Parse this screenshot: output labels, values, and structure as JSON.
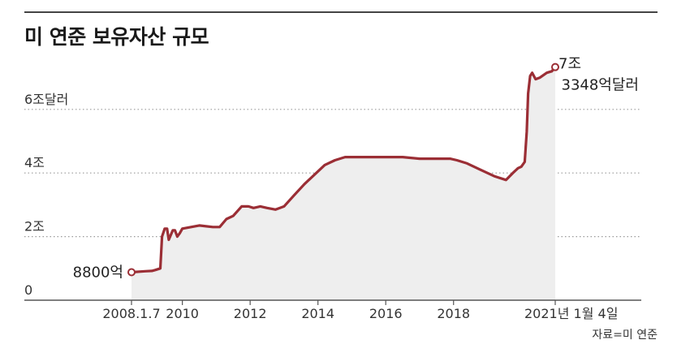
{
  "header": {
    "title": "미 연준 보유자산 규모",
    "source": "자료=미 연준"
  },
  "colors": {
    "line": "#9b2e35",
    "area": "#eeeeee",
    "grid": "#9a9a9a",
    "axis": "#555555"
  },
  "chart_data": {
    "type": "area",
    "title": "미 연준 보유자산 규모",
    "xlabel": "",
    "ylabel": "",
    "ylim": [
      0,
      7.5
    ],
    "xlim": [
      2008.5,
      2021.0
    ],
    "y_ticks": [
      {
        "value": 0,
        "label": "0"
      },
      {
        "value": 2,
        "label": "2조"
      },
      {
        "value": 4,
        "label": "4조"
      },
      {
        "value": 6,
        "label": "6조달러"
      }
    ],
    "x_ticks": [
      {
        "value": 2008.5,
        "label": "2008.1.7"
      },
      {
        "value": 2010,
        "label": "2010"
      },
      {
        "value": 2012,
        "label": "2012"
      },
      {
        "value": 2014,
        "label": "2014"
      },
      {
        "value": 2016,
        "label": "2016"
      },
      {
        "value": 2018,
        "label": "2018"
      },
      {
        "value": 2021.0,
        "label": "2021년 1월 4일"
      }
    ],
    "grid": "horizontal dotted",
    "series": [
      {
        "x": [
          2008.5,
          2008.9,
          2009.1,
          2009.2,
          2009.35,
          2009.4,
          2009.48,
          2009.55,
          2009.6,
          2009.66,
          2009.72,
          2009.78,
          2009.85,
          2009.92,
          2010.0,
          2010.5,
          2010.9,
          2011.1,
          2011.3,
          2011.5,
          2011.75,
          2011.88,
          2011.95,
          2012.1,
          2012.3,
          2012.5,
          2012.75,
          2013.0,
          2013.3,
          2013.6,
          2013.9,
          2014.2,
          2014.5,
          2014.8,
          2015.2,
          2015.6,
          2016.0,
          2016.5,
          2017.0,
          2017.5,
          2017.9,
          2018.1,
          2018.4,
          2018.8,
          2019.2,
          2019.55,
          2019.75,
          2019.9,
          2020.0,
          2020.1,
          2020.16,
          2020.2,
          2020.26,
          2020.32,
          2020.42,
          2020.55,
          2020.75,
          2020.9,
          2021.0
        ],
        "values": [
          0.88,
          0.91,
          0.92,
          0.95,
          1.0,
          2.0,
          2.25,
          2.25,
          1.9,
          2.05,
          2.2,
          2.2,
          2.0,
          2.1,
          2.25,
          2.35,
          2.3,
          2.3,
          2.55,
          2.65,
          2.95,
          2.95,
          2.95,
          2.9,
          2.95,
          2.9,
          2.85,
          2.95,
          3.3,
          3.65,
          3.95,
          4.25,
          4.4,
          4.5,
          4.5,
          4.5,
          4.5,
          4.5,
          4.45,
          4.45,
          4.45,
          4.4,
          4.3,
          4.1,
          3.9,
          3.78,
          4.0,
          4.15,
          4.2,
          4.35,
          5.3,
          6.5,
          7.05,
          7.15,
          6.95,
          7.0,
          7.15,
          7.2,
          7.33
        ]
      }
    ],
    "annotations": [
      {
        "x": 2008.5,
        "y": 0.88,
        "label": "8800억"
      },
      {
        "x": 2021.0,
        "y": 7.33,
        "label_line1": "7조",
        "label_line2": "3348억달러"
      }
    ]
  }
}
